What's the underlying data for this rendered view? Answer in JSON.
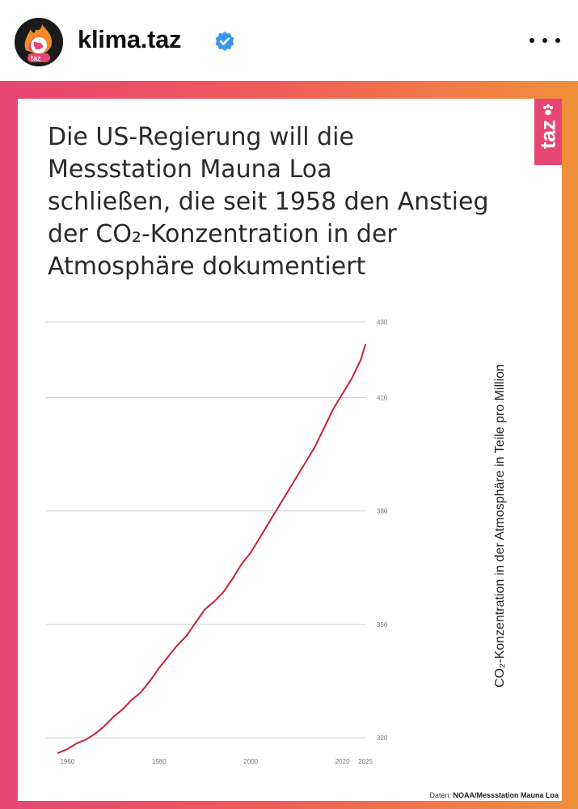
{
  "header": {
    "avatar_label": "taz",
    "username": "klima.taz",
    "verified_icon": "verified-badge-icon",
    "more_icon": "more-options-icon"
  },
  "post": {
    "brand_tab": "taz",
    "headline_lines": [
      "Die US-Regierung will die",
      "Messstation Mauna Loa",
      "schließen, die seit 1958 den Anstieg",
      "der CO₂-Konzentration in der",
      "Atmosphäre dokumentiert"
    ],
    "source_prefix": "Daten: ",
    "source_name": "NOAA/Messstation Mauna Loa",
    "colors": {
      "accent": "#e64672",
      "line": "#c8223a",
      "gradient_left": "#e64672",
      "gradient_right": "#f0903a"
    }
  },
  "chart_data": {
    "type": "line",
    "title": "",
    "xlabel": "",
    "ylabel": "CO₂-Konzentration in der Atmosphäre in Teile pro Million",
    "x_ticks": [
      1960,
      1980,
      2000,
      2020,
      2025
    ],
    "y_ticks": [
      320,
      350,
      380,
      410,
      430
    ],
    "xlim": [
      1958,
      2025
    ],
    "ylim": [
      320,
      430
    ],
    "grid": "horizontal",
    "y_axis_position": "right",
    "series": [
      {
        "x": [
          1958,
          1960,
          1962,
          1964,
          1966,
          1968,
          1970,
          1972,
          1974,
          1976,
          1978,
          1980,
          1982,
          1984,
          1986,
          1988,
          1990,
          1992,
          1994,
          1996,
          1998,
          2000,
          2002,
          2004,
          2006,
          2008,
          2010,
          2012,
          2014,
          2016,
          2018,
          2020,
          2022,
          2024,
          2025
        ],
        "values": [
          316,
          317,
          318.5,
          319.5,
          321,
          323,
          325.5,
          327.5,
          330,
          332,
          335,
          338.5,
          341.5,
          344.5,
          347,
          350.5,
          354,
          356,
          358.5,
          362,
          366,
          369,
          373,
          377,
          381,
          385,
          389,
          393,
          397,
          402,
          407,
          411,
          415,
          420,
          424
        ]
      }
    ]
  }
}
